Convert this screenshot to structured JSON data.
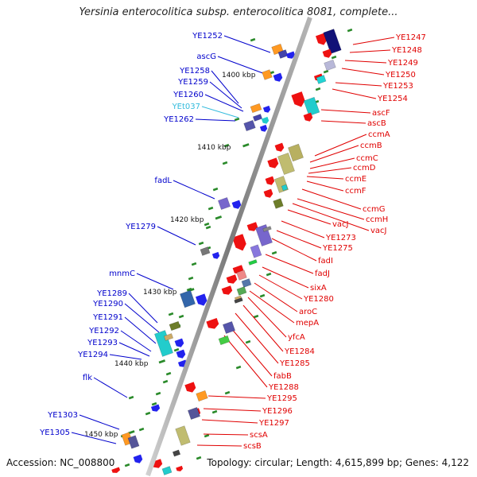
{
  "title": "Yersinia enterocolitica subsp. enterocolitica 8081, complete...",
  "footer": {
    "accession": "Accession: NC_008800",
    "summary": "Topology: circular; Length: 4,615,899 bp; Genes: 4,122"
  },
  "colors": {
    "left_label": "#0000cc",
    "right_label": "#e00000",
    "trna_label": "#33bbdd",
    "backbone": "#8a8a8a",
    "tick": "#2a8a2a"
  },
  "scale_labels": [
    "1400 kbp",
    "1410 kbp",
    "1420 kbp",
    "1430 kbp",
    "1440 kbp",
    "1450 kbp"
  ],
  "left_genes": [
    {
      "name": "YE1252",
      "kind": "cds"
    },
    {
      "name": "ascG",
      "kind": "cds"
    },
    {
      "name": "YE1258",
      "kind": "cds"
    },
    {
      "name": "YE1259",
      "kind": "cds"
    },
    {
      "name": "YE1260",
      "kind": "cds"
    },
    {
      "name": "YEt037",
      "kind": "trna"
    },
    {
      "name": "YE1262",
      "kind": "cds"
    },
    {
      "name": "fadL",
      "kind": "cds"
    },
    {
      "name": "YE1279",
      "kind": "cds"
    },
    {
      "name": "mnmC",
      "kind": "cds"
    },
    {
      "name": "YE1289",
      "kind": "cds"
    },
    {
      "name": "YE1290",
      "kind": "cds"
    },
    {
      "name": "YE1291",
      "kind": "cds"
    },
    {
      "name": "YE1292",
      "kind": "cds"
    },
    {
      "name": "YE1293",
      "kind": "cds"
    },
    {
      "name": "YE1294",
      "kind": "cds"
    },
    {
      "name": "flk",
      "kind": "cds"
    },
    {
      "name": "YE1303",
      "kind": "cds"
    },
    {
      "name": "YE1305",
      "kind": "cds"
    }
  ],
  "right_genes": [
    "YE1247",
    "YE1248",
    "YE1249",
    "YE1250",
    "YE1253",
    "YE1254",
    "ascF",
    "ascB",
    "ccmA",
    "ccmB",
    "ccmC",
    "ccmD",
    "ccmE",
    "ccmF",
    "ccmG",
    "ccmH",
    "vacJ",
    "vacJ",
    "YE1273",
    "YE1275",
    "fadI",
    "fadJ",
    "sixA",
    "YE1280",
    "aroC",
    "mepA",
    "yfcA",
    "YE1284",
    "YE1285",
    "fabB",
    "YE1288",
    "YE1295",
    "YE1296",
    "YE1297",
    "scsA",
    "scsB"
  ]
}
